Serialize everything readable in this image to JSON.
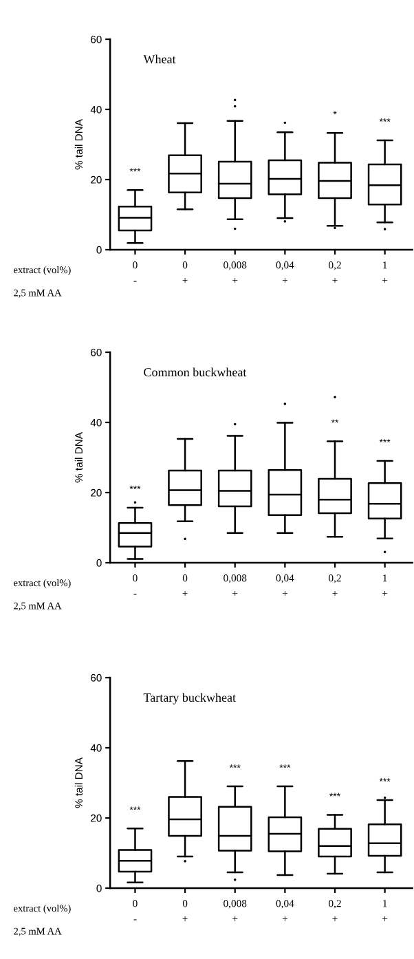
{
  "chart_data": [
    {
      "type": "box",
      "title": "Wheat",
      "ylabel": "% tail DNA",
      "categories": [
        "0\n-",
        "0\n+",
        "0,008\n+",
        "0,04\n+",
        "0,2\n+",
        "1\n+"
      ],
      "ylim": [
        0,
        60
      ],
      "yticks": [
        0,
        20,
        40,
        60
      ],
      "grid": false,
      "legend": false,
      "boxes": [
        {
          "low": 1.9,
          "q1": 5.5,
          "median": 9.1,
          "q3": 12.3,
          "high": 17.0
        },
        {
          "low": 11.5,
          "q1": 16.3,
          "median": 21.7,
          "q3": 26.9,
          "high": 36.1
        },
        {
          "low": 8.7,
          "q1": 14.7,
          "median": 18.8,
          "q3": 25.1,
          "high": 36.7,
          "outliers": [
            42.7,
            40.9,
            6.0
          ]
        },
        {
          "low": 9.0,
          "q1": 15.8,
          "median": 20.2,
          "q3": 25.5,
          "high": 33.5,
          "outliers": [
            36.2,
            8.1
          ]
        },
        {
          "low": 6.8,
          "q1": 14.7,
          "median": 19.6,
          "q3": 24.8,
          "high": 33.3,
          "outliers": [
            6.2
          ]
        },
        {
          "low": 7.8,
          "q1": 12.9,
          "median": 18.4,
          "q3": 24.3,
          "high": 31.2,
          "outliers": [
            5.9
          ]
        }
      ],
      "value_labels": [
        "***",
        null,
        null,
        null,
        "*",
        "***"
      ],
      "annotations": [
        "extract (vol%)",
        "2,5 mM AA"
      ]
    },
    {
      "type": "box",
      "title": "Common buckwheat",
      "ylabel": "% tail DNA",
      "categories": [
        "0\n-",
        "0\n+",
        "0,008\n+",
        "0,04\n+",
        "0,2\n+",
        "1\n+"
      ],
      "ylim": [
        0,
        60
      ],
      "yticks": [
        0,
        20,
        40,
        60
      ],
      "grid": false,
      "legend": false,
      "boxes": [
        {
          "low": 1.1,
          "q1": 4.6,
          "median": 8.5,
          "q3": 11.3,
          "high": 15.7,
          "outliers": [
            17.2
          ]
        },
        {
          "low": 11.8,
          "q1": 16.4,
          "median": 20.7,
          "q3": 26.3,
          "high": 35.3,
          "outliers": [
            6.8
          ]
        },
        {
          "low": 8.5,
          "q1": 16.1,
          "median": 20.5,
          "q3": 26.3,
          "high": 36.2,
          "outliers": [
            39.5
          ]
        },
        {
          "low": 8.5,
          "q1": 13.6,
          "median": 19.4,
          "q3": 26.4,
          "high": 39.9,
          "outliers": [
            45.3
          ]
        },
        {
          "low": 7.4,
          "q1": 14.1,
          "median": 18.0,
          "q3": 23.9,
          "high": 34.6,
          "outliers": [
            47.2
          ]
        },
        {
          "low": 6.9,
          "q1": 12.6,
          "median": 16.8,
          "q3": 22.7,
          "high": 29.0,
          "outliers": [
            3.1
          ]
        }
      ],
      "value_labels": [
        "***",
        null,
        null,
        null,
        "**",
        "***"
      ],
      "annotations": [
        "extract (vol%)",
        "2,5 mM AA"
      ]
    },
    {
      "type": "box",
      "title": "Tartary buckwheat",
      "ylabel": "% tail DNA",
      "categories": [
        "0\n-",
        "0\n+",
        "0,008\n+",
        "0,04\n+",
        "0,2\n+",
        "1\n+"
      ],
      "ylim": [
        0,
        60
      ],
      "yticks": [
        0,
        20,
        40,
        60
      ],
      "grid": false,
      "legend": false,
      "boxes": [
        {
          "low": 1.6,
          "q1": 4.7,
          "median": 7.8,
          "q3": 10.9,
          "high": 17.0
        },
        {
          "low": 9.0,
          "q1": 14.9,
          "median": 19.6,
          "q3": 26.0,
          "high": 36.2,
          "outliers": [
            7.7
          ]
        },
        {
          "low": 4.5,
          "q1": 10.7,
          "median": 14.9,
          "q3": 23.2,
          "high": 29.0,
          "outliers": [
            2.4
          ]
        },
        {
          "low": 3.7,
          "q1": 10.5,
          "median": 15.5,
          "q3": 20.2,
          "high": 29.0
        },
        {
          "low": 4.1,
          "q1": 9.0,
          "median": 12.0,
          "q3": 16.9,
          "high": 20.9
        },
        {
          "low": 4.5,
          "q1": 9.2,
          "median": 12.8,
          "q3": 18.2,
          "high": 25.1,
          "outliers": [
            25.8
          ]
        }
      ],
      "value_labels": [
        "***",
        null,
        "***",
        "***",
        "***",
        "***"
      ],
      "annotations": [
        "extract (vol%)",
        "2,5 mM AA"
      ]
    }
  ]
}
